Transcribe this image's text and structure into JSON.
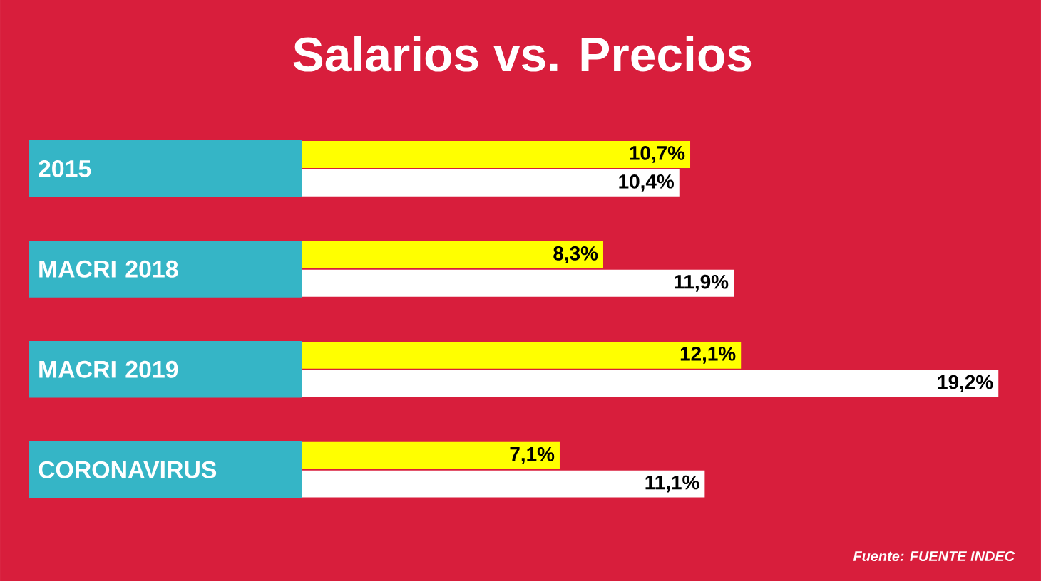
{
  "chart_data": {
    "type": "bar",
    "orientation": "horizontal",
    "title": "Salarios vs. Precios",
    "categories": [
      "2015",
      "MACRI 2018",
      "MACRI 2019",
      "CORONAVIRUS"
    ],
    "series": [
      {
        "color": "#ffff00",
        "values": [
          10.7,
          8.3,
          12.1,
          7.1
        ],
        "value_labels": [
          "10,7%",
          "8,3%",
          "12,1%",
          "7,1%"
        ]
      },
      {
        "color": "#ffffff",
        "values": [
          10.4,
          11.9,
          19.2,
          11.1
        ],
        "value_labels": [
          "10,4%",
          "11,9%",
          "19,2%",
          "11,1%"
        ]
      }
    ],
    "annotations": [
      "Fuente: FUENTE INDEC"
    ]
  }
}
